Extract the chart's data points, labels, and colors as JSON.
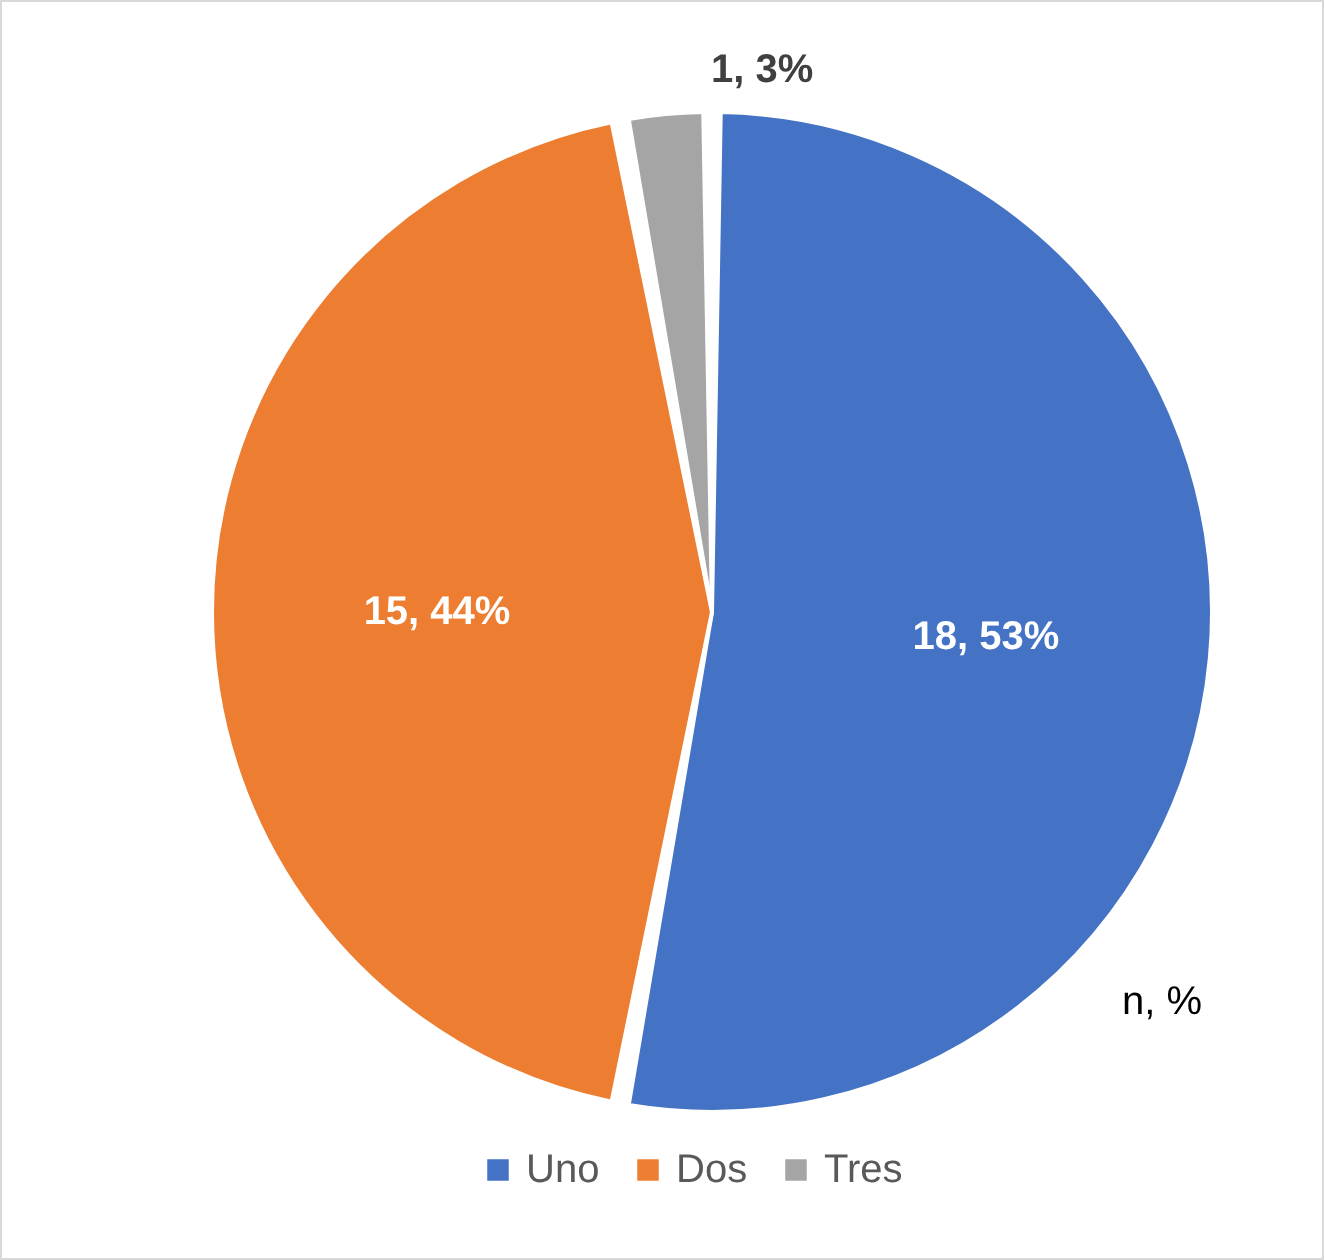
{
  "chart_data": {
    "type": "pie",
    "categories": [
      "Uno",
      "Dos",
      "Tres"
    ],
    "values": [
      18,
      15,
      1
    ],
    "colors": [
      "#4472c4",
      "#ed7d31",
      "#a5a5a5"
    ],
    "value_labels": [
      "18, 53%",
      "15, 44%",
      "1, 3%"
    ],
    "legend": "bottom",
    "annotations": [
      "n, %"
    ]
  }
}
